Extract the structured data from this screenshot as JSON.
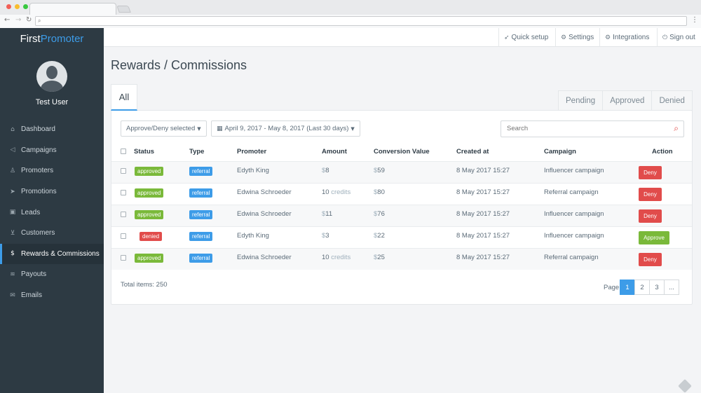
{
  "colors": {
    "accent": "#3d9ce8",
    "sidebar_bg": "#2d3a43",
    "approved": "#7ab93a",
    "denied": "#e14c4b",
    "referral": "#3d9ce8"
  },
  "browser": {
    "address": ""
  },
  "brand": {
    "first": "First",
    "second": "Promoter"
  },
  "user": {
    "name": "Test User"
  },
  "sidebar": {
    "items": [
      {
        "label": "Dashboard",
        "icon": "home-icon"
      },
      {
        "label": "Campaigns",
        "icon": "megaphone-icon"
      },
      {
        "label": "Promoters",
        "icon": "users-icon"
      },
      {
        "label": "Promotions",
        "icon": "paper-plane-icon"
      },
      {
        "label": "Leads",
        "icon": "contact-card-icon"
      },
      {
        "label": "Customers",
        "icon": "cart-icon"
      },
      {
        "label": "Rewards & Commissions",
        "icon": "dollar-icon"
      },
      {
        "label": "Payouts",
        "icon": "money-icon"
      },
      {
        "label": "Emails",
        "icon": "envelope-icon"
      }
    ],
    "active_index": 6
  },
  "topbar": {
    "quick_setup": "Quick setup",
    "settings": "Settings",
    "integrations": "Integrations",
    "sign_out": "Sign out"
  },
  "page": {
    "title": "Rewards / Commissions"
  },
  "tabs": {
    "all": "All",
    "pending": "Pending",
    "approved": "Approved",
    "denied": "Denied"
  },
  "filters": {
    "bulk_action": "Approve/Deny selected",
    "date_range": "April 9, 2017 - May 8, 2017 (Last 30 days)"
  },
  "search": {
    "placeholder": "Search"
  },
  "table": {
    "headers": [
      "Status",
      "Type",
      "Promoter",
      "Amount",
      "Conversion Value",
      "Created at",
      "Campaign",
      "Action"
    ],
    "rows": [
      {
        "status": "approved",
        "type": "referral",
        "promoter": "Edyth King",
        "amount_prefix": "$",
        "amount": "8",
        "amount_suffix": "",
        "conv_prefix": "$",
        "conv": "59",
        "created": "8 May 2017 15:27",
        "campaign": "Influencer campaign",
        "action": "Deny"
      },
      {
        "status": "approved",
        "type": "referral",
        "promoter": "Edwina Schroeder",
        "amount_prefix": "",
        "amount": "10",
        "amount_suffix": "credits",
        "conv_prefix": "$",
        "conv": "80",
        "created": "8 May 2017 15:27",
        "campaign": "Referral campaign",
        "action": "Deny"
      },
      {
        "status": "approved",
        "type": "referral",
        "promoter": "Edwina Schroeder",
        "amount_prefix": "$",
        "amount": "11",
        "amount_suffix": "",
        "conv_prefix": "$",
        "conv": "76",
        "created": "8 May 2017 15:27",
        "campaign": "Influencer campaign",
        "action": "Deny"
      },
      {
        "status": "denied",
        "type": "referral",
        "promoter": "Edyth King",
        "amount_prefix": "$",
        "amount": "3",
        "amount_suffix": "",
        "conv_prefix": "$",
        "conv": "22",
        "created": "8 May 2017 15:27",
        "campaign": "Influencer campaign",
        "action": "Approve"
      },
      {
        "status": "approved",
        "type": "referral",
        "promoter": "Edwina Schroeder",
        "amount_prefix": "",
        "amount": "10",
        "amount_suffix": "credits",
        "conv_prefix": "$",
        "conv": "25",
        "created": "8 May 2017 15:27",
        "campaign": "Referral campaign",
        "action": "Deny"
      }
    ]
  },
  "footer": {
    "total": "Total items: 250",
    "page_label": "Page",
    "pages": [
      "1",
      "2",
      "3",
      "..."
    ],
    "current_page": "1"
  }
}
